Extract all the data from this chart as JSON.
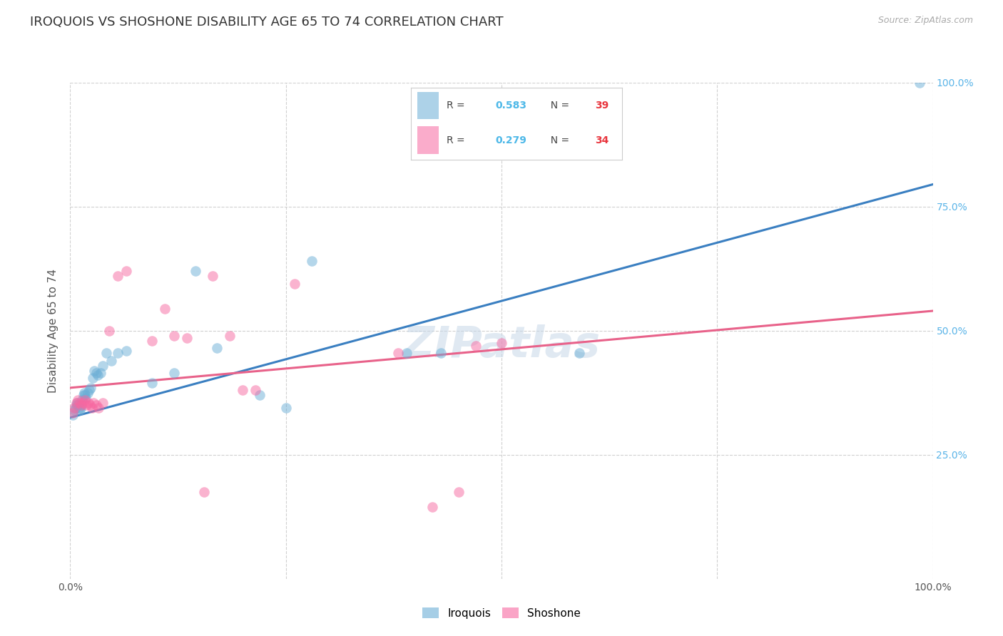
{
  "title": "IROQUOIS VS SHOSHONE DISABILITY AGE 65 TO 74 CORRELATION CHART",
  "source": "Source: ZipAtlas.com",
  "ylabel": "Disability Age 65 to 74",
  "xlim": [
    0,
    1.0
  ],
  "ylim": [
    0,
    1.0
  ],
  "iroquois_color": "#6baed6",
  "shoshone_color": "#f768a1",
  "iroquois_R": "0.583",
  "iroquois_N": "39",
  "shoshone_R": "0.279",
  "shoshone_N": "34",
  "legend_R_color": "#4db8e8",
  "legend_N_color": "#e8353d",
  "watermark": "ZIPatlas",
  "iroquois_x": [
    0.003,
    0.005,
    0.006,
    0.007,
    0.008,
    0.009,
    0.01,
    0.011,
    0.012,
    0.013,
    0.014,
    0.015,
    0.016,
    0.017,
    0.018,
    0.02,
    0.022,
    0.024,
    0.026,
    0.028,
    0.03,
    0.032,
    0.035,
    0.038,
    0.042,
    0.048,
    0.055,
    0.065,
    0.095,
    0.12,
    0.145,
    0.17,
    0.22,
    0.25,
    0.28,
    0.39,
    0.43,
    0.59,
    0.985
  ],
  "iroquois_y": [
    0.33,
    0.34,
    0.345,
    0.35,
    0.355,
    0.35,
    0.345,
    0.34,
    0.345,
    0.35,
    0.36,
    0.37,
    0.375,
    0.37,
    0.365,
    0.375,
    0.38,
    0.385,
    0.405,
    0.42,
    0.415,
    0.41,
    0.415,
    0.43,
    0.455,
    0.44,
    0.455,
    0.46,
    0.395,
    0.415,
    0.62,
    0.465,
    0.37,
    0.345,
    0.64,
    0.455,
    0.455,
    0.455,
    1.0
  ],
  "shoshone_x": [
    0.003,
    0.005,
    0.007,
    0.009,
    0.011,
    0.013,
    0.015,
    0.017,
    0.019,
    0.021,
    0.023,
    0.025,
    0.027,
    0.03,
    0.033,
    0.038,
    0.045,
    0.055,
    0.065,
    0.095,
    0.11,
    0.12,
    0.135,
    0.155,
    0.165,
    0.185,
    0.2,
    0.215,
    0.26,
    0.38,
    0.42,
    0.45,
    0.47,
    0.5
  ],
  "shoshone_y": [
    0.335,
    0.345,
    0.355,
    0.36,
    0.355,
    0.35,
    0.355,
    0.36,
    0.35,
    0.355,
    0.35,
    0.345,
    0.355,
    0.35,
    0.345,
    0.355,
    0.5,
    0.61,
    0.62,
    0.48,
    0.545,
    0.49,
    0.485,
    0.175,
    0.61,
    0.49,
    0.38,
    0.38,
    0.595,
    0.455,
    0.145,
    0.175,
    0.47,
    0.475
  ],
  "blue_line_x": [
    0.0,
    1.0
  ],
  "blue_line_y": [
    0.325,
    0.795
  ],
  "pink_line_x": [
    0.0,
    1.0
  ],
  "pink_line_y": [
    0.385,
    0.54
  ],
  "bg_color": "#ffffff",
  "grid_color": "#d0d0d0",
  "title_fontsize": 13,
  "axis_label_fontsize": 11,
  "tick_fontsize": 10,
  "right_tick_color": "#5ab4e8",
  "bottom_tick_color": "#555555"
}
